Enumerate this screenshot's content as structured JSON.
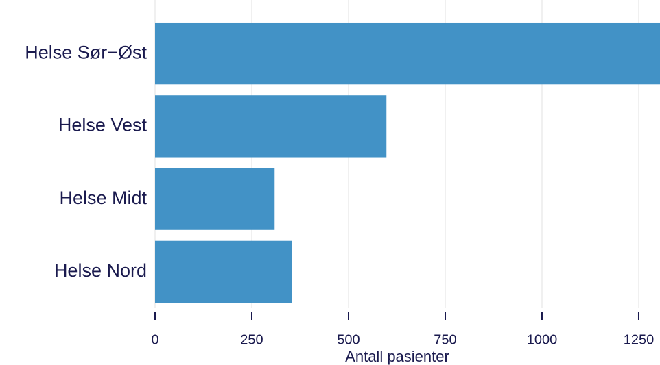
{
  "chart_data": {
    "type": "hbar",
    "x_label": "Antall pasienter",
    "categories": [
      "Helse Sør−Øst",
      "Helse Vest",
      "Helse Midt",
      "Helse Nord"
    ],
    "values": [
      1305,
      598,
      309,
      353
    ],
    "color": "#4292c6",
    "xlim": [
      0,
      1305
    ],
    "xticks": [
      0,
      250,
      500,
      750,
      1000,
      1250
    ],
    "grid": true
  }
}
